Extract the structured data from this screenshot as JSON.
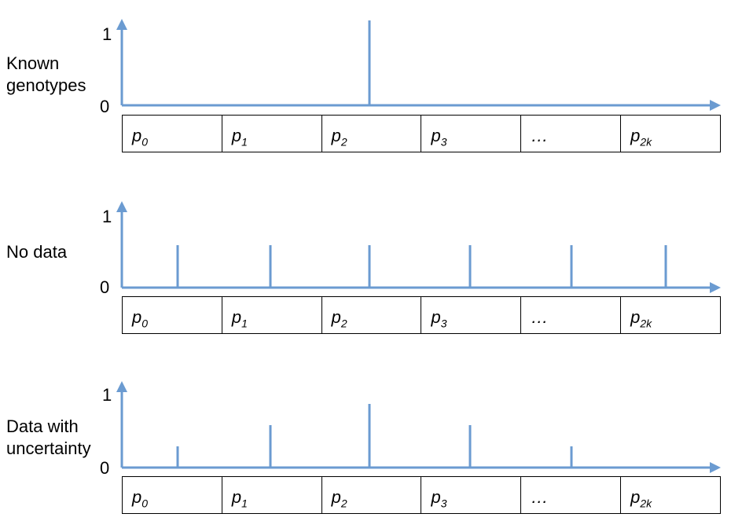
{
  "colors": {
    "axis": "#6b9bd1",
    "spike": "#6b9bd1",
    "border": "#000000"
  },
  "bin_labels": [
    {
      "base": "p",
      "sub": "0"
    },
    {
      "base": "p",
      "sub": "1"
    },
    {
      "base": "p",
      "sub": "2"
    },
    {
      "base": "p",
      "sub": "3"
    },
    {
      "base": "…",
      "sub": ""
    },
    {
      "base": "p",
      "sub": "2k"
    }
  ],
  "panels": [
    {
      "label_lines": [
        "Known",
        "genotypes"
      ],
      "y_max_label": "1",
      "y_min_label": "0",
      "spikes": [
        0,
        0,
        1.0,
        0,
        0,
        0
      ]
    },
    {
      "label_lines": [
        "No data"
      ],
      "y_max_label": "1",
      "y_min_label": "0",
      "spikes": [
        0.5,
        0.5,
        0.5,
        0.5,
        0.5,
        0.5
      ]
    },
    {
      "label_lines": [
        "Data with",
        "uncertainty"
      ],
      "y_max_label": "1",
      "y_min_label": "0",
      "spikes": [
        0.25,
        0.5,
        0.75,
        0.5,
        0.25,
        0
      ]
    }
  ]
}
